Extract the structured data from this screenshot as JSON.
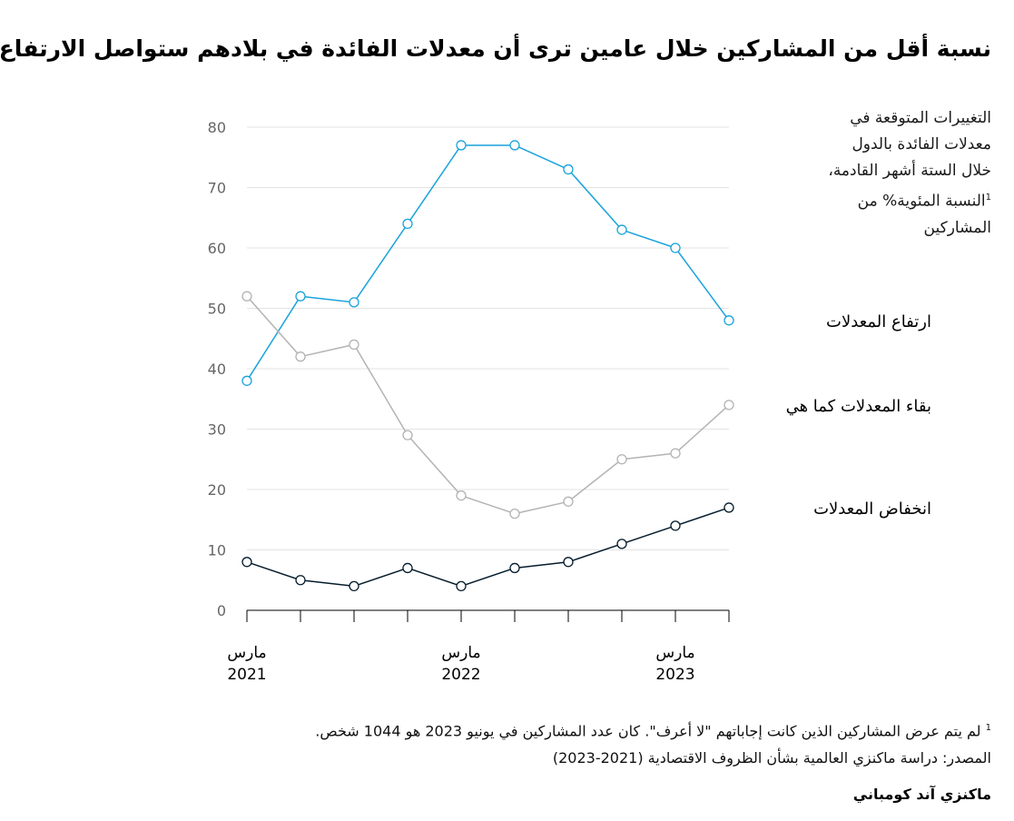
{
  "title": "نسبة أقل من المشاركين خلال عامين ترى أن معدلات الفائدة في بلادهم ستواصل الارتفاع",
  "chart_caption": {
    "line1": "التغييرات المتوقعة في",
    "line2": "معدلات الفائدة بالدول",
    "line3": "خلال الستة أشهر القادمة،",
    "line4": "النسبة المئوية% من",
    "line4_sup": "1",
    "line5": "المشاركين"
  },
  "chart_data": {
    "type": "line",
    "title": "نسبة أقل من المشاركين خلال عامين ترى أن معدلات الفائدة في بلادهم ستواصل الارتفاع",
    "xlabel": "",
    "ylabel": "التغييرات المتوقعة في معدلات الفائدة بالدول خلال الستة أشهر القادمة، النسبة المئوية% من المشاركين",
    "ylim": [
      0,
      80
    ],
    "yticks": [
      "0",
      "10",
      "20",
      "30",
      "40",
      "50",
      "60",
      "70",
      "80"
    ],
    "x": [
      0,
      1,
      2,
      3,
      4,
      5,
      6,
      7,
      8,
      9
    ],
    "xtick_labels": [
      {
        "index": 0,
        "month": "مارس",
        "year": "2021"
      },
      {
        "index": 4,
        "month": "مارس",
        "year": "2022"
      },
      {
        "index": 8,
        "month": "مارس",
        "year": "2023"
      }
    ],
    "grid": true,
    "series": [
      {
        "name": "ارتفاع المعدلات",
        "color": "#1aa3dc",
        "values": [
          38,
          52,
          51,
          64,
          77,
          77,
          73,
          63,
          60,
          48
        ]
      },
      {
        "name": "بقاء المعدلات كما هي",
        "color": "#b3b3b3",
        "values": [
          52,
          42,
          44,
          29,
          19,
          16,
          18,
          25,
          26,
          34
        ]
      },
      {
        "name": "انخفاض المعدلات",
        "color": "#051c2c",
        "values": [
          8,
          5,
          4,
          7,
          4,
          7,
          8,
          11,
          14,
          17
        ]
      }
    ]
  },
  "footnotes": {
    "note_marker": "1",
    "note": "لم يتم عرض المشاركين الذين كانت إجاباتهم \"لا أعرف\". كان عدد المشاركين في يونيو 2023 هو 1044 شخص.",
    "source": "المصدر: دراسة ماكنزي العالمية بشأن الظروف الاقتصادية (2021-2023)"
  },
  "brand": "ماكنزي آند كومباني"
}
